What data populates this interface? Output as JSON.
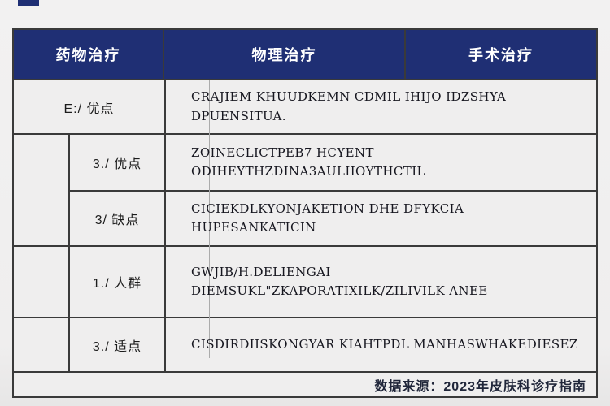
{
  "colors": {
    "page_bg": "#f1f0f0",
    "header_bg": "#1f2f74",
    "header_text": "#ffffff",
    "border": "#3a3a3a",
    "cell_bg": "#efeeee",
    "faint_line": "#ababab"
  },
  "table": {
    "headers": [
      {
        "label": "药物治疗"
      },
      {
        "label": "物理治疗"
      },
      {
        "label": "手术治疗"
      }
    ],
    "rows": [
      {
        "label": "E:/ 优点",
        "content": "CRAJIEM KHUUDKEMN CDMIL IHIJO IDZSHYA DPUENSITUA."
      },
      {
        "label": "3./ 优点",
        "content": "ZOINECLICTPEB7 HCYENT ODIHEYTHZDINA3AULIIOYTHCTIL"
      },
      {
        "label": "3/ 缺点",
        "content": "CICIEKDLKYONJAKETION DHE DFYKCIA HUPESANKATICIN"
      },
      {
        "label": "1./ 人群",
        "content": "GWJIB/H.DELIENGAI DIEMSUKL\"ZKAPORATIXILK/ZILIVILK ANEE"
      },
      {
        "label": "3./ 适点",
        "content": "CISDIRDIISKONGYAR KIAHTPDL MANHASWHAKEDIESEZ"
      }
    ],
    "footer": "数据来源：2023年皮肤科诊疗指南"
  }
}
